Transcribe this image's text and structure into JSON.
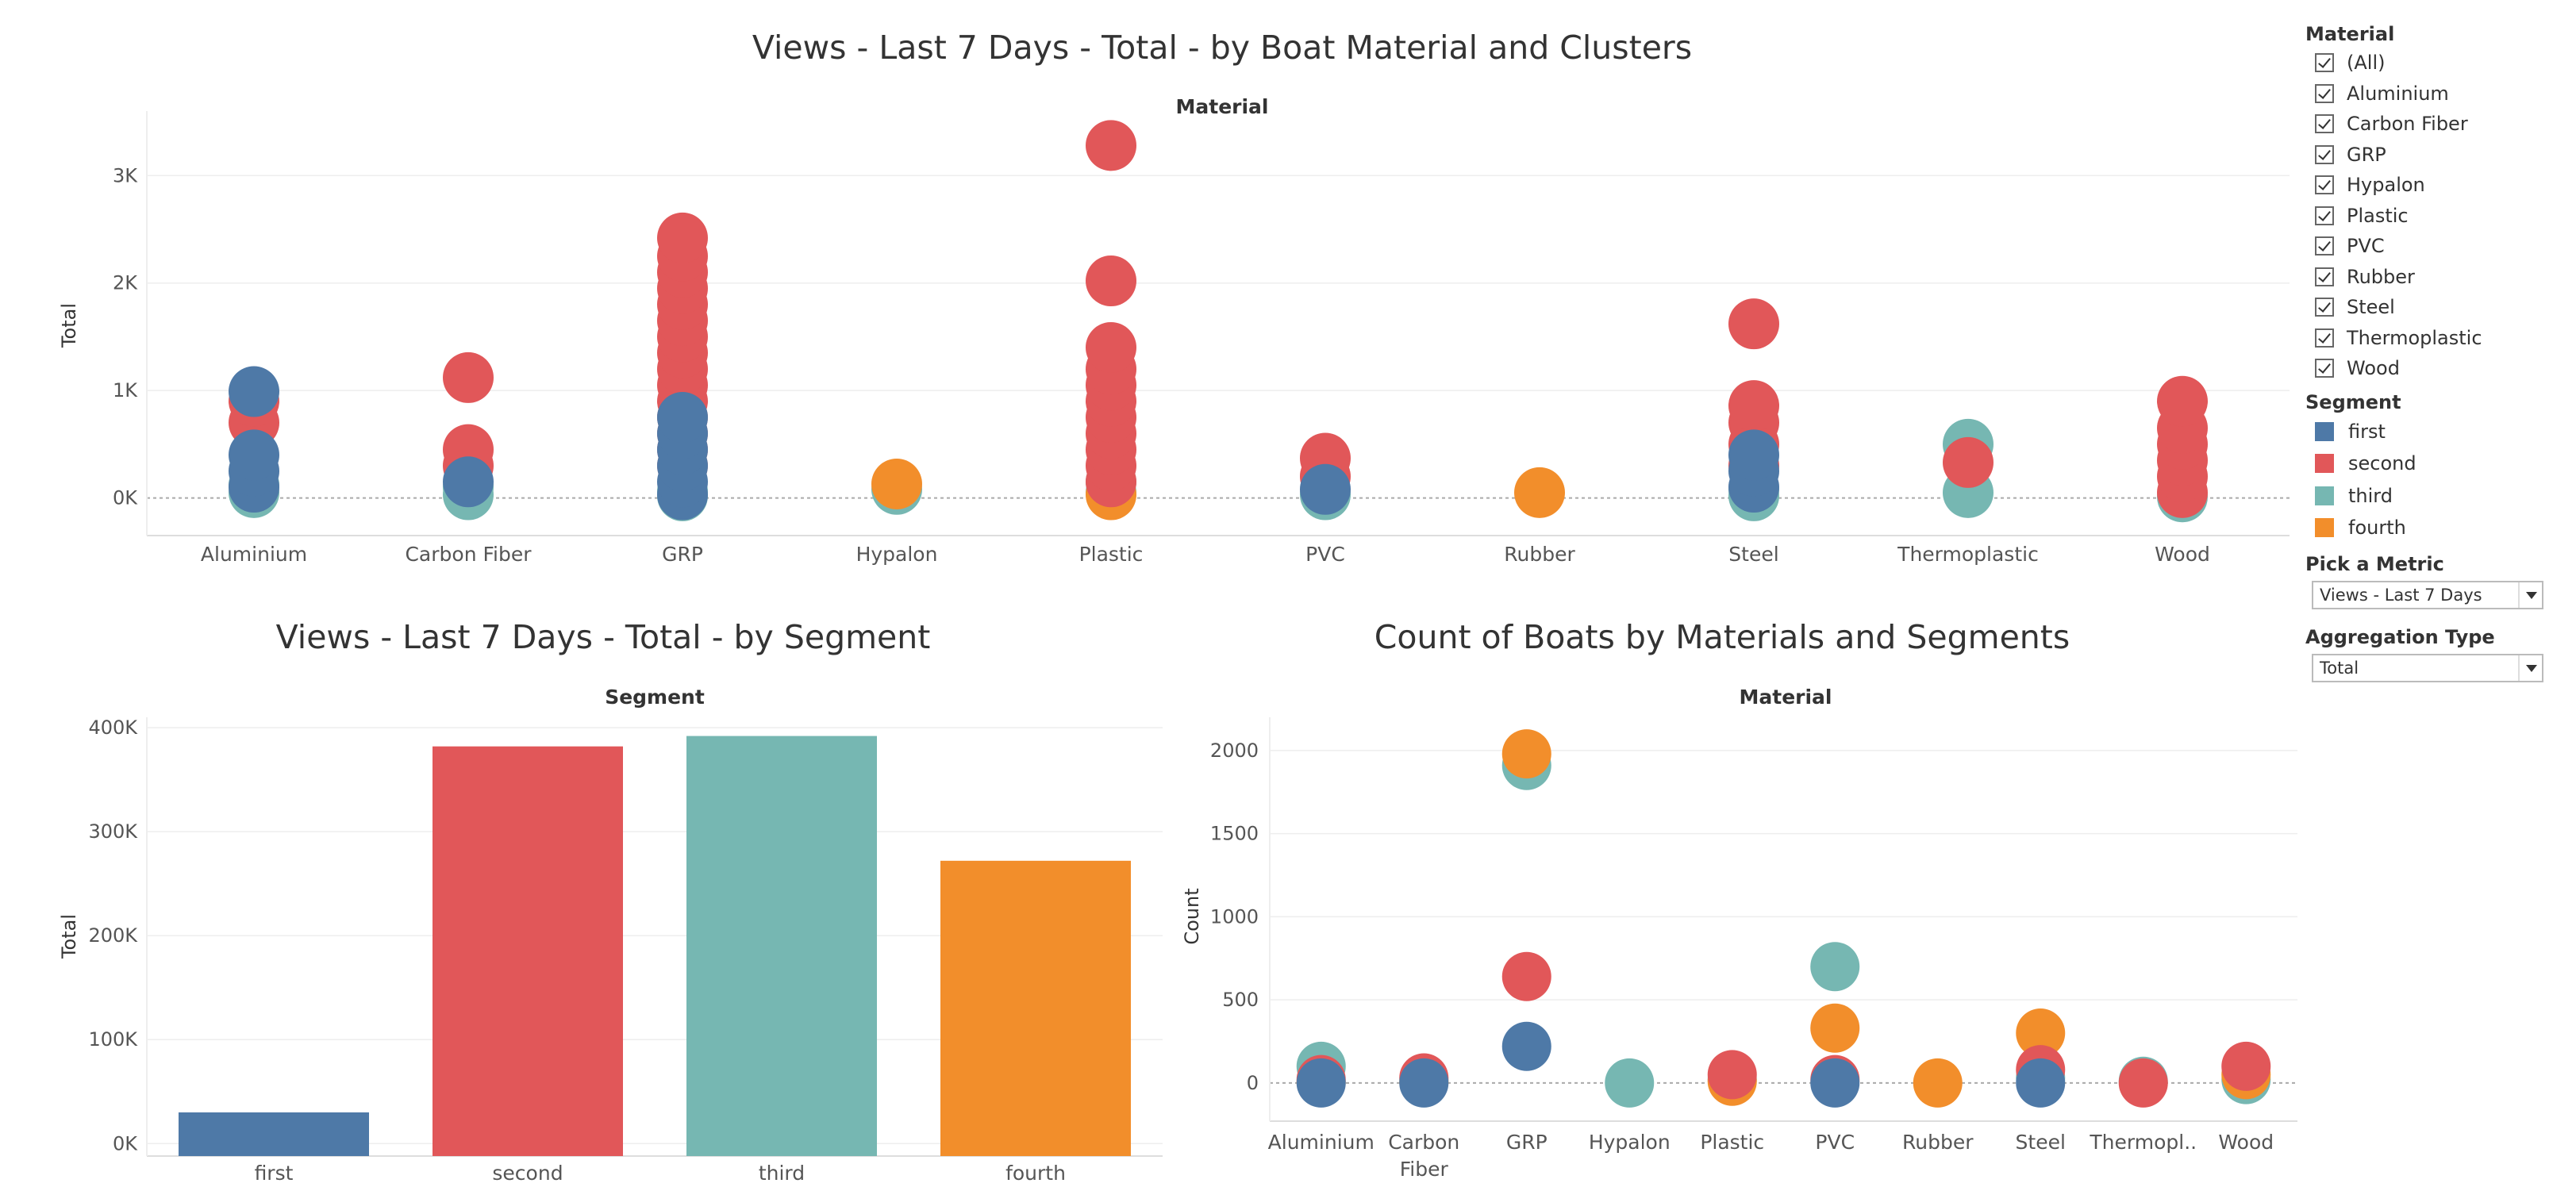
{
  "colors": {
    "first": "#4e79a7",
    "second": "#e15759",
    "third": "#76b7b2",
    "fourth": "#f28e2b"
  },
  "top_chart": {
    "title": "Views - Last 7 Days - Total - by Boat Material and Clusters",
    "header": "Material",
    "ylabel": "Total",
    "yticks": [
      "0K",
      "1K",
      "2K",
      "3K"
    ]
  },
  "left_chart": {
    "title": "Views - Last 7 Days - Total - by Segment",
    "header": "Segment",
    "ylabel": "Total",
    "yticks": [
      "0K",
      "100K",
      "200K",
      "300K",
      "400K"
    ]
  },
  "right_chart": {
    "title": "Count of Boats by Materials and Segments",
    "header": "Material",
    "ylabel": "Count",
    "yticks": [
      "0",
      "500",
      "1000",
      "1500",
      "2000"
    ],
    "xticklabels": [
      "Aluminium",
      "Carbon\nFiber",
      "GRP",
      "Hypalon",
      "Plastic",
      "PVC",
      "Rubber",
      "Steel",
      "Thermopl..",
      "Wood"
    ]
  },
  "chart_data": [
    {
      "type": "scatter",
      "title": "Views - Last 7 Days - Total - by Boat Material and Clusters",
      "xlabel": "Material",
      "ylabel": "Total",
      "ylim": [
        -350,
        3600
      ],
      "categories": [
        "Aluminium",
        "Carbon Fiber",
        "GRP",
        "Hypalon",
        "Plastic",
        "PVC",
        "Rubber",
        "Steel",
        "Thermoplastic",
        "Wood"
      ],
      "series": [
        {
          "name": "third",
          "points": [
            {
              "x": "Aluminium",
              "y": 50
            },
            {
              "x": "Aluminium",
              "y": 120
            },
            {
              "x": "Carbon Fiber",
              "y": 30
            },
            {
              "x": "Carbon Fiber",
              "y": 100
            },
            {
              "x": "GRP",
              "y": 20
            },
            {
              "x": "GRP",
              "y": 60
            },
            {
              "x": "Hypalon",
              "y": 80
            },
            {
              "x": "Plastic",
              "y": 50
            },
            {
              "x": "Plastic",
              "y": 150
            },
            {
              "x": "PVC",
              "y": 30
            },
            {
              "x": "Steel",
              "y": 20
            },
            {
              "x": "Steel",
              "y": 80
            },
            {
              "x": "Thermoplastic",
              "y": 50
            },
            {
              "x": "Thermoplastic",
              "y": 500
            },
            {
              "x": "Wood",
              "y": 10
            }
          ]
        },
        {
          "name": "fourth",
          "points": [
            {
              "x": "Hypalon",
              "y": 130
            },
            {
              "x": "Plastic",
              "y": 30
            },
            {
              "x": "Rubber",
              "y": 50
            }
          ]
        },
        {
          "name": "second",
          "points": [
            {
              "x": "Aluminium",
              "y": 700
            },
            {
              "x": "Aluminium",
              "y": 900
            },
            {
              "x": "Carbon Fiber",
              "y": 300
            },
            {
              "x": "Carbon Fiber",
              "y": 450
            },
            {
              "x": "Carbon Fiber",
              "y": 1120
            },
            {
              "x": "GRP",
              "y": 300
            },
            {
              "x": "GRP",
              "y": 450
            },
            {
              "x": "GRP",
              "y": 600
            },
            {
              "x": "GRP",
              "y": 750
            },
            {
              "x": "GRP",
              "y": 900
            },
            {
              "x": "GRP",
              "y": 1050
            },
            {
              "x": "GRP",
              "y": 1200
            },
            {
              "x": "GRP",
              "y": 1350
            },
            {
              "x": "GRP",
              "y": 1500
            },
            {
              "x": "GRP",
              "y": 1650
            },
            {
              "x": "GRP",
              "y": 1800
            },
            {
              "x": "GRP",
              "y": 1950
            },
            {
              "x": "GRP",
              "y": 2100
            },
            {
              "x": "GRP",
              "y": 2250
            },
            {
              "x": "GRP",
              "y": 2420
            },
            {
              "x": "Plastic",
              "y": 150
            },
            {
              "x": "Plastic",
              "y": 300
            },
            {
              "x": "Plastic",
              "y": 450
            },
            {
              "x": "Plastic",
              "y": 600
            },
            {
              "x": "Plastic",
              "y": 750
            },
            {
              "x": "Plastic",
              "y": 900
            },
            {
              "x": "Plastic",
              "y": 1050
            },
            {
              "x": "Plastic",
              "y": 1200
            },
            {
              "x": "Plastic",
              "y": 1400
            },
            {
              "x": "Plastic",
              "y": 2020
            },
            {
              "x": "Plastic",
              "y": 3280
            },
            {
              "x": "PVC",
              "y": 200
            },
            {
              "x": "PVC",
              "y": 370
            },
            {
              "x": "Steel",
              "y": 300
            },
            {
              "x": "Steel",
              "y": 500
            },
            {
              "x": "Steel",
              "y": 700
            },
            {
              "x": "Steel",
              "y": 860
            },
            {
              "x": "Steel",
              "y": 1620
            },
            {
              "x": "Thermoplastic",
              "y": 330
            },
            {
              "x": "Wood",
              "y": 50
            },
            {
              "x": "Wood",
              "y": 200
            },
            {
              "x": "Wood",
              "y": 350
            },
            {
              "x": "Wood",
              "y": 500
            },
            {
              "x": "Wood",
              "y": 650
            },
            {
              "x": "Wood",
              "y": 900
            }
          ]
        },
        {
          "name": "first",
          "points": [
            {
              "x": "Aluminium",
              "y": 100
            },
            {
              "x": "Aluminium",
              "y": 250
            },
            {
              "x": "Aluminium",
              "y": 400
            },
            {
              "x": "Aluminium",
              "y": 990
            },
            {
              "x": "Carbon Fiber",
              "y": 150
            },
            {
              "x": "GRP",
              "y": 30
            },
            {
              "x": "GRP",
              "y": 150
            },
            {
              "x": "GRP",
              "y": 300
            },
            {
              "x": "GRP",
              "y": 450
            },
            {
              "x": "GRP",
              "y": 600
            },
            {
              "x": "GRP",
              "y": 750
            },
            {
              "x": "PVC",
              "y": 80
            },
            {
              "x": "Steel",
              "y": 100
            },
            {
              "x": "Steel",
              "y": 250
            },
            {
              "x": "Steel",
              "y": 400
            }
          ]
        }
      ]
    },
    {
      "type": "bar",
      "title": "Views - Last 7 Days - Total - by Segment",
      "xlabel": "Segment",
      "ylabel": "Total",
      "ylim": [
        -12000,
        410000
      ],
      "categories": [
        "first",
        "second",
        "third",
        "fourth"
      ],
      "values": [
        30000,
        382000,
        392000,
        272000
      ]
    },
    {
      "type": "scatter",
      "title": "Count of Boats by Materials and Segments",
      "xlabel": "Material",
      "ylabel": "Count",
      "ylim": [
        -230,
        2200
      ],
      "categories": [
        "Aluminium",
        "Carbon Fiber",
        "GRP",
        "Hypalon",
        "Plastic",
        "PVC",
        "Rubber",
        "Steel",
        "Thermoplastic",
        "Wood"
      ],
      "series": [
        {
          "name": "third",
          "points": [
            {
              "x": "Aluminium",
              "y": 100
            },
            {
              "x": "Carbon Fiber",
              "y": 20
            },
            {
              "x": "GRP",
              "y": 1910
            },
            {
              "x": "Hypalon",
              "y": 0
            },
            {
              "x": "Plastic",
              "y": 20
            },
            {
              "x": "PVC",
              "y": 700
            },
            {
              "x": "Steel",
              "y": 30
            },
            {
              "x": "Thermoplastic",
              "y": 10
            },
            {
              "x": "Wood",
              "y": 20
            }
          ]
        },
        {
          "name": "fourth",
          "points": [
            {
              "x": "Aluminium",
              "y": 5
            },
            {
              "x": "Carbon Fiber",
              "y": 5
            },
            {
              "x": "GRP",
              "y": 1980
            },
            {
              "x": "Plastic",
              "y": 10
            },
            {
              "x": "PVC",
              "y": 330
            },
            {
              "x": "Rubber",
              "y": 0
            },
            {
              "x": "Steel",
              "y": 300
            },
            {
              "x": "Wood",
              "y": 50
            }
          ]
        },
        {
          "name": "second",
          "points": [
            {
              "x": "Aluminium",
              "y": 20
            },
            {
              "x": "Carbon Fiber",
              "y": 30
            },
            {
              "x": "GRP",
              "y": 640
            },
            {
              "x": "Plastic",
              "y": 50
            },
            {
              "x": "PVC",
              "y": 20
            },
            {
              "x": "Steel",
              "y": 80
            },
            {
              "x": "Thermoplastic",
              "y": 0
            },
            {
              "x": "Wood",
              "y": 100
            }
          ]
        },
        {
          "name": "first",
          "points": [
            {
              "x": "Aluminium",
              "y": 0
            },
            {
              "x": "Carbon Fiber",
              "y": 0
            },
            {
              "x": "GRP",
              "y": 220
            },
            {
              "x": "PVC",
              "y": 0
            },
            {
              "x": "Steel",
              "y": 0
            }
          ]
        }
      ]
    }
  ],
  "sidebar": {
    "material_title": "Material",
    "material_items": [
      "(All)",
      "Aluminium",
      "Carbon Fiber",
      "GRP",
      "Hypalon",
      "Plastic",
      "PVC",
      "Rubber",
      "Steel",
      "Thermoplastic",
      "Wood"
    ],
    "segment_title": "Segment",
    "segments": [
      "first",
      "second",
      "third",
      "fourth"
    ],
    "metric_title": "Pick a Metric",
    "metric_value": "Views - Last 7 Days",
    "aggregation_title": "Aggregation Type",
    "aggregation_value": "Total"
  }
}
